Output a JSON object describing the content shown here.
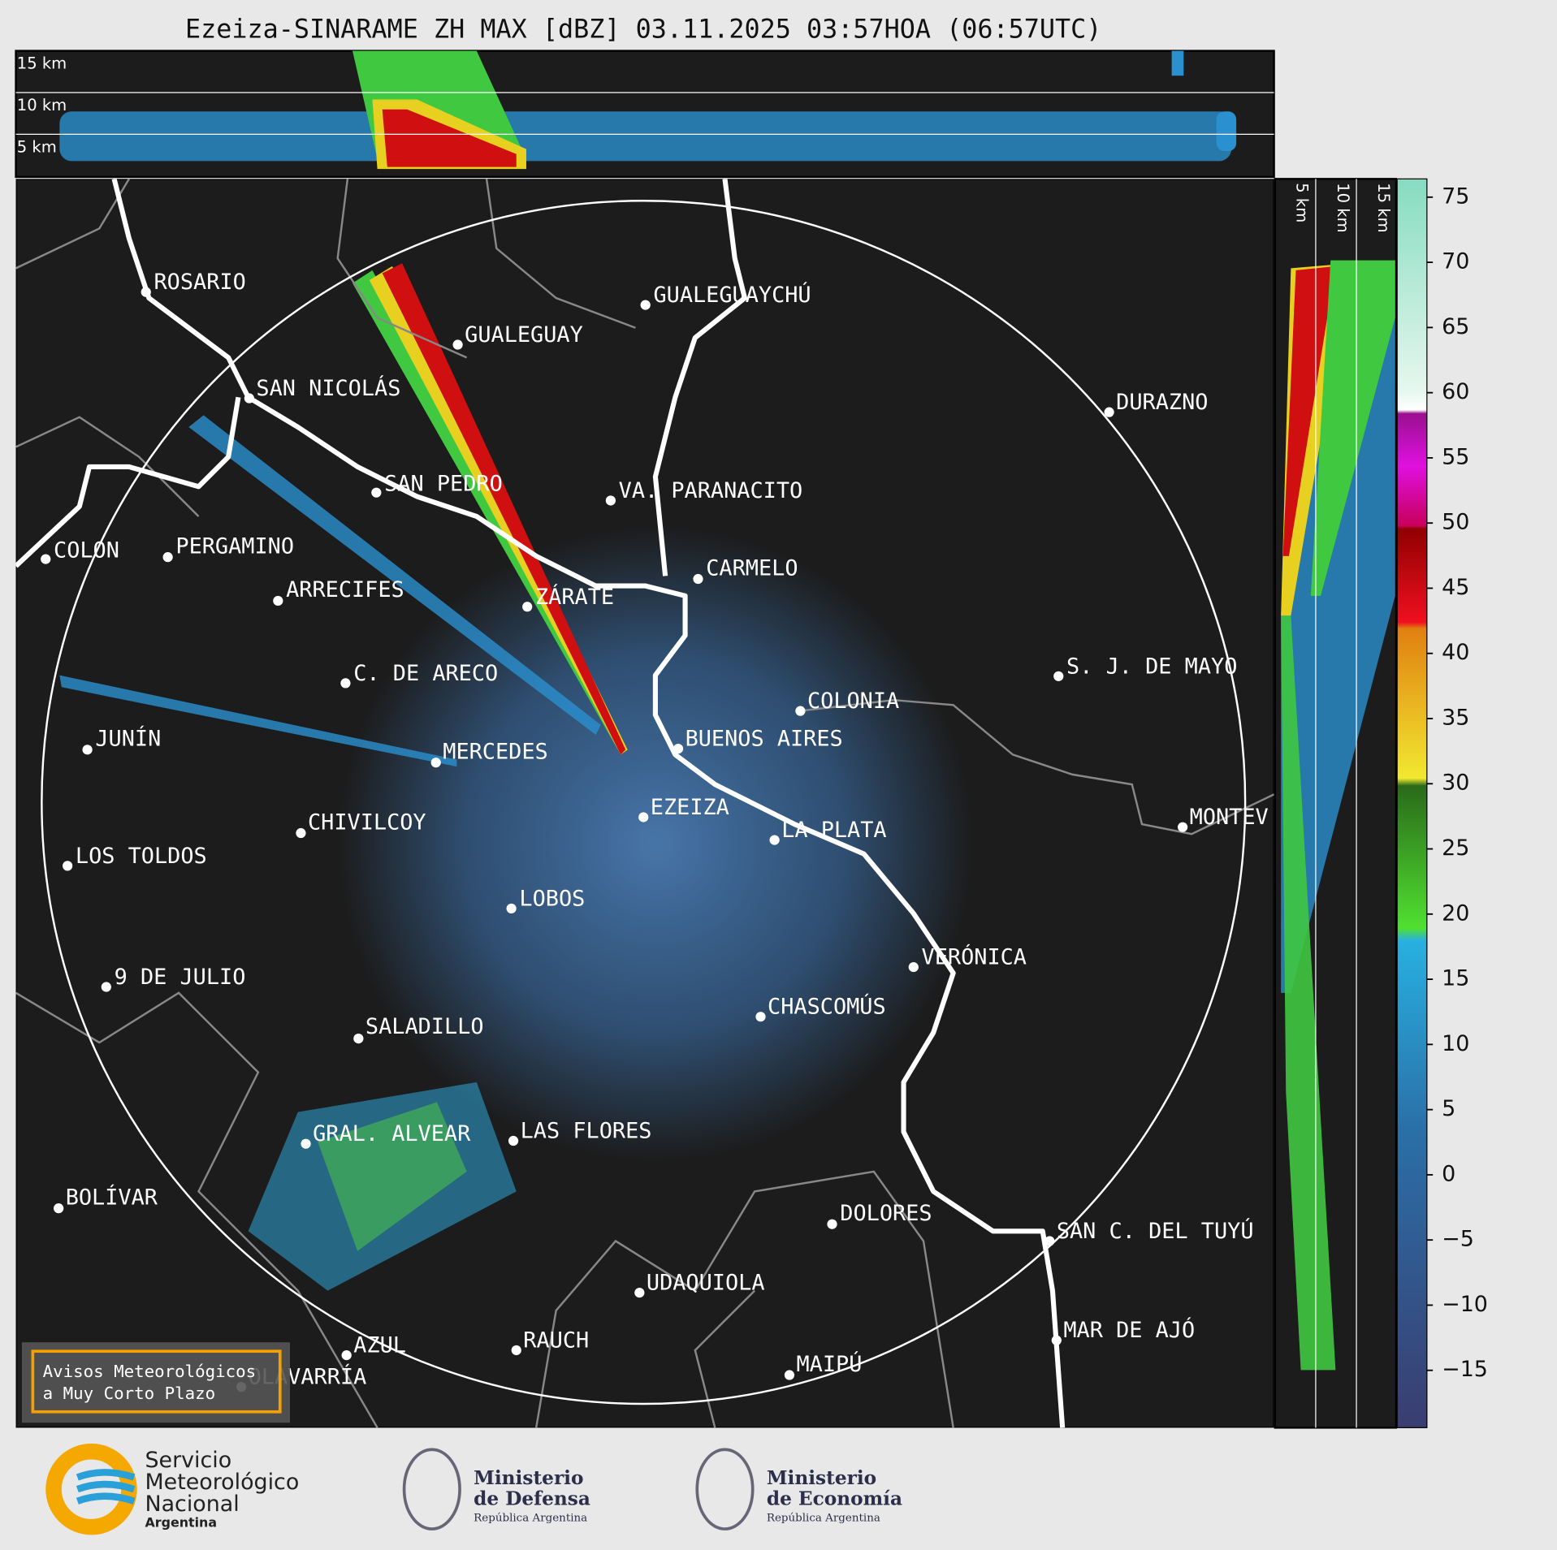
{
  "header": {
    "title": "Ezeiza-SINARAME ZH MAX [dBZ] 03.11.2025 03:57HOA (06:57UTC)"
  },
  "top_section": {
    "levels": [
      "15 km",
      "10 km",
      "5 km"
    ]
  },
  "side_section": {
    "levels": [
      "5 km",
      "10 km",
      "15 km"
    ]
  },
  "map": {
    "cities": [
      {
        "label": "ROSARIO"
      },
      {
        "label": "GUALEGUAYCHÚ"
      },
      {
        "label": "GUALEGUAY"
      },
      {
        "label": "SAN NICOLÁS"
      },
      {
        "label": "DURAZNO"
      },
      {
        "label": "SAN PEDRO"
      },
      {
        "label": "VA. PARANACITO"
      },
      {
        "label": "COLON"
      },
      {
        "label": "PERGAMINO"
      },
      {
        "label": "CARMELO"
      },
      {
        "label": "ARRECIFES"
      },
      {
        "label": "ZÁRATE"
      },
      {
        "label": "C. DE ARECO"
      },
      {
        "label": "S. J. DE MAYO"
      },
      {
        "label": "COLONIA"
      },
      {
        "label": "BUENOS AIRES"
      },
      {
        "label": "JUNÍN"
      },
      {
        "label": "MERCEDES"
      },
      {
        "label": "EZEIZA"
      },
      {
        "label": "MONTEV"
      },
      {
        "label": "CHIVILCOY"
      },
      {
        "label": "LA PLATA"
      },
      {
        "label": "LOS TOLDOS"
      },
      {
        "label": "LOBOS"
      },
      {
        "label": "VERÓNICA"
      },
      {
        "label": "9 DE JULIO"
      },
      {
        "label": "CHASCOMÚS"
      },
      {
        "label": "SALADILLO"
      },
      {
        "label": "GRAL. ALVEAR"
      },
      {
        "label": "LAS FLORES"
      },
      {
        "label": "BOLÍVAR"
      },
      {
        "label": "DOLORES"
      },
      {
        "label": "SAN C. DEL TUYÚ"
      },
      {
        "label": "UDAQUIOLA"
      },
      {
        "label": "MAR DE AJÓ"
      },
      {
        "label": "RAUCH"
      },
      {
        "label": "AZUL"
      },
      {
        "label": "OLAVARRÍA"
      },
      {
        "label": "MAIPÚ"
      }
    ]
  },
  "colorbar": {
    "lim": [
      -19.4,
      76.4
    ],
    "ticks": [
      {
        "value": -15,
        "label": "−15"
      },
      {
        "value": -10,
        "label": "−10"
      },
      {
        "value": -5,
        "label": "−5"
      },
      0,
      5,
      10,
      15,
      20,
      25,
      30,
      35,
      40,
      45,
      50,
      55,
      60,
      65,
      70,
      75
    ]
  },
  "warning_box": {
    "lines": [
      "Avisos Meteorológicos",
      "a Muy Corto Plazo"
    ]
  },
  "footer": {
    "smn": {
      "lines": [
        "Servicio",
        "Meteorológico",
        "Nacional"
      ],
      "country": "Argentina"
    },
    "defensa": {
      "lines": [
        "Ministerio",
        "de Defensa"
      ],
      "country": "República Argentina"
    },
    "economia": {
      "lines": [
        "Ministerio",
        "de Economía"
      ],
      "country": "República Argentina"
    }
  }
}
